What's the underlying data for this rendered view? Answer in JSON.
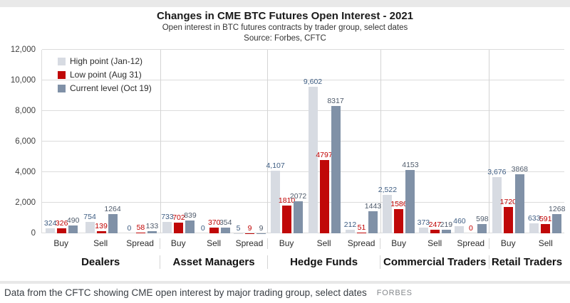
{
  "footer": {
    "caption": "Data from the CFTC showing CME open interest by major trading group, select dates",
    "attribution": "FORBES"
  },
  "chart_data": {
    "type": "bar",
    "title": "Changes in CME BTC Futures Open Interest - 2021",
    "subtitle": "Open interest in BTC futures contracts by trader group, select dates",
    "source": "Source: Forbes, CFTC",
    "xlabel": "",
    "ylabel": "",
    "ylim": [
      0,
      12000
    ],
    "grid": "horizontal",
    "legend_position": "top-left",
    "yticks": [
      {
        "value": 0,
        "label": "0"
      },
      {
        "value": 2000,
        "label": "2,000"
      },
      {
        "value": 4000,
        "label": "4,000"
      },
      {
        "value": 6000,
        "label": "6,000"
      },
      {
        "value": 8000,
        "label": "8,000"
      },
      {
        "value": 10000,
        "label": "10,000"
      },
      {
        "value": 12000,
        "label": "12,000"
      }
    ],
    "series": [
      {
        "name": "High point (Jan-12)",
        "bar_color": "#d7dbe2",
        "label_color": "#3d5c82"
      },
      {
        "name": "Low point (Aug 31)",
        "bar_color": "#c00808",
        "label_color": "#c00000"
      },
      {
        "name": "Current level (Oct 19)",
        "bar_color": "#8091a7",
        "label_color": "#4e5a6a"
      }
    ],
    "groups": [
      {
        "name": "Dealers",
        "clusters": [
          {
            "category": "Buy",
            "values": [
              324,
              326,
              490
            ],
            "labels": [
              "324",
              "326",
              "490"
            ]
          },
          {
            "category": "Sell",
            "values": [
              754,
              139,
              1264
            ],
            "labels": [
              "754",
              "139",
              "1264"
            ]
          },
          {
            "category": "Spread",
            "values": [
              0,
              58,
              133
            ],
            "labels": [
              "0",
              "58",
              "133"
            ]
          }
        ]
      },
      {
        "name": "Asset Managers",
        "clusters": [
          {
            "category": "Buy",
            "values": [
              733,
              702,
              839
            ],
            "labels": [
              "733",
              "702",
              "839"
            ]
          },
          {
            "category": "Sell",
            "values": [
              0,
              370,
              354
            ],
            "labels": [
              "0",
              "370",
              "354"
            ]
          },
          {
            "category": "Spread",
            "values": [
              5,
              9,
              9
            ],
            "labels": [
              "5",
              "9",
              "9"
            ]
          }
        ]
      },
      {
        "name": "Hedge Funds",
        "clusters": [
          {
            "category": "Buy",
            "values": [
              4107,
              1810,
              2072
            ],
            "labels": [
              "4,107",
              "1810",
              "2072"
            ]
          },
          {
            "category": "Sell",
            "values": [
              9602,
              4797,
              8317
            ],
            "labels": [
              "9,602",
              "4797",
              "8317"
            ]
          },
          {
            "category": "Spread",
            "values": [
              212,
              51,
              1443
            ],
            "labels": [
              "212",
              "51",
              "1443"
            ]
          }
        ]
      },
      {
        "name": "Commercial Traders",
        "clusters": [
          {
            "category": "Buy",
            "values": [
              2522,
              1586,
              4153
            ],
            "labels": [
              "2,522",
              "1586",
              "4153"
            ]
          },
          {
            "category": "Sell",
            "values": [
              373,
              247,
              219
            ],
            "labels": [
              "373",
              "247",
              "219"
            ]
          },
          {
            "category": "Spread",
            "values": [
              460,
              0,
              598
            ],
            "labels": [
              "460",
              "0",
              "598"
            ]
          }
        ]
      },
      {
        "name": "Retail Traders",
        "clusters": [
          {
            "category": "Buy",
            "values": [
              3676,
              1720,
              3868
            ],
            "labels": [
              "3,676",
              "1720",
              "3868"
            ]
          },
          {
            "category": "Sell",
            "values": [
              633,
              591,
              1268
            ],
            "labels": [
              "633",
              "591",
              "1268"
            ]
          }
        ]
      }
    ],
    "group_width_percents": [
      22.8,
      20.5,
      21.6,
      20.8,
      14.3
    ]
  }
}
